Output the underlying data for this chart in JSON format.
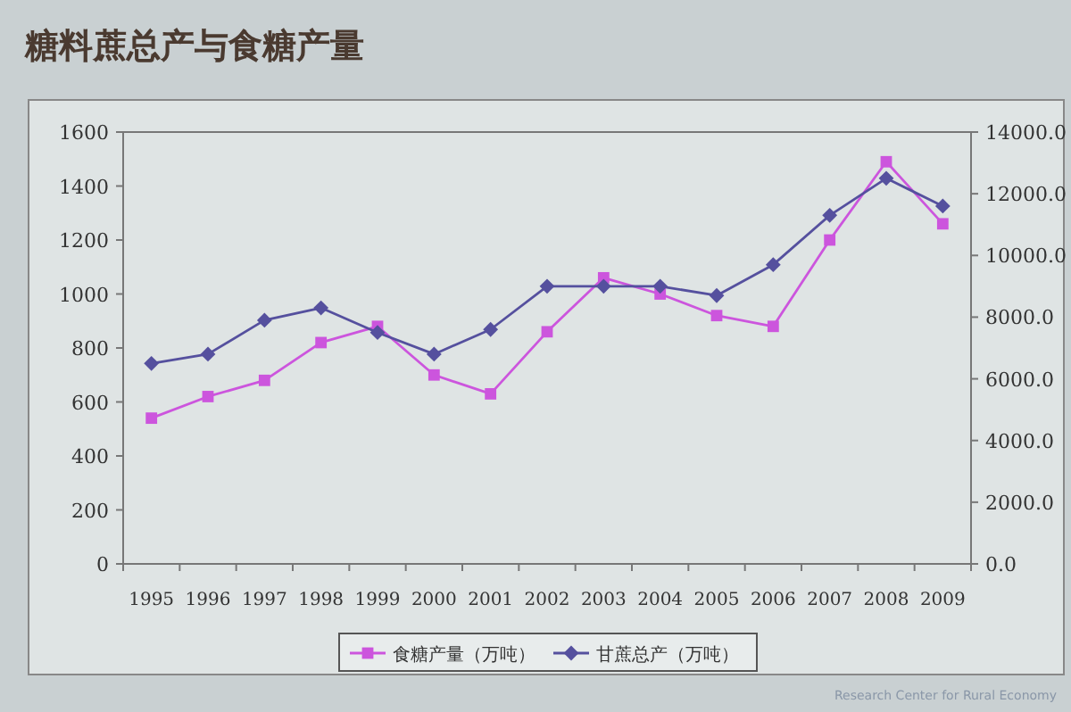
{
  "chart_data": {
    "type": "line",
    "title": "糖料蔗总产与食糖产量",
    "categories": [
      "1995",
      "1996",
      "1997",
      "1998",
      "1999",
      "2000",
      "2001",
      "2002",
      "2003",
      "2004",
      "2005",
      "2006",
      "2007",
      "2008",
      "2009"
    ],
    "series": [
      {
        "name": "食糖产量（万吨）",
        "color": "#cc55dd",
        "marker": "square",
        "values": [
          540,
          620,
          680,
          820,
          880,
          700,
          630,
          860,
          1060,
          1000,
          920,
          880,
          1200,
          1490,
          1260
        ]
      },
      {
        "name": "甘蔗总产（万吨）",
        "color": "#55509e",
        "marker": "diamond",
        "axis": "y2",
        "values": [
          6500,
          6800,
          7900,
          8300,
          7500,
          6800,
          7600,
          9000,
          9000,
          9000,
          8700,
          9700,
          11300,
          12500,
          11600
        ]
      }
    ],
    "ylim": [
      0,
      1600
    ],
    "yticks": [
      0,
      200,
      400,
      600,
      800,
      1000,
      1200,
      1400,
      1600
    ],
    "y2lim": [
      0,
      14000
    ],
    "y2ticks": [
      {
        "value": 0,
        "label": "0.0"
      },
      {
        "value": 2000,
        "label": "2000.0"
      },
      {
        "value": 4000,
        "label": "4000.0"
      },
      {
        "value": 6000,
        "label": "6000.0"
      },
      {
        "value": 8000,
        "label": "8000.0"
      },
      {
        "value": 10000,
        "label": "10000.0"
      },
      {
        "value": 12000,
        "label": "12000.0"
      },
      {
        "value": 14000,
        "label": "14000.0"
      }
    ],
    "legend": "bottom",
    "annotations": [
      "Research Center for Rural Economy"
    ]
  }
}
